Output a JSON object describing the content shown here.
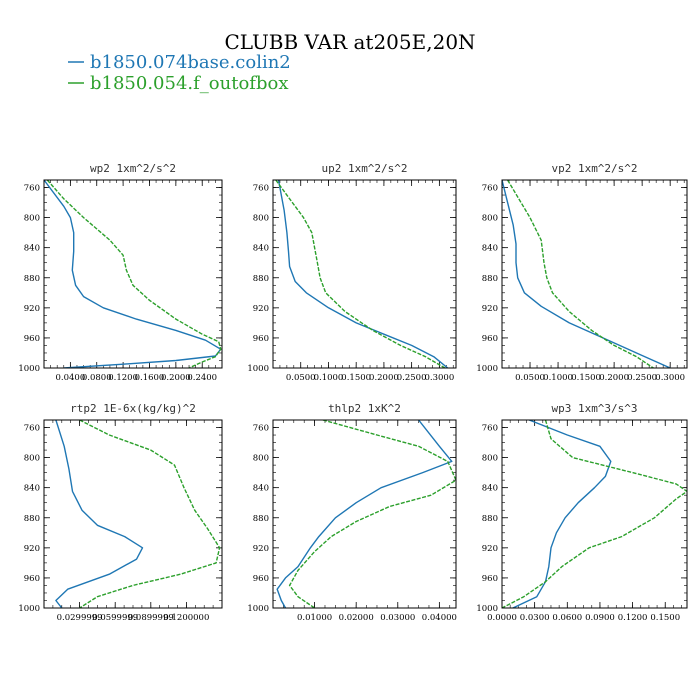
{
  "figure": {
    "title": "CLUBB VAR at205E,20N",
    "legend": [
      {
        "label": "b1850.074base.colin2",
        "color": "#1f77b4"
      },
      {
        "label": "b1850.054.f_outofbox",
        "color": "#2ca02c"
      }
    ]
  },
  "chart_data": [
    {
      "type": "line",
      "title": "wp2   1xm^2/s^2",
      "y_ticks": [
        "760",
        "800",
        "840",
        "880",
        "920",
        "960",
        "1000"
      ],
      "x_tick_labels": [
        "0.0400",
        "0.0800",
        "0.1200",
        "0.1600",
        "0.2000",
        "0.2400"
      ],
      "x_tick_values": [
        0.04,
        0.08,
        0.12,
        0.16,
        0.2,
        0.24
      ],
      "xlim": [
        0.0,
        0.27
      ],
      "ylim": [
        750,
        1000
      ],
      "series": [
        {
          "color": "#1f77b4",
          "dash": false,
          "points": [
            [
              0.0,
              750
            ],
            [
              0.03,
              785
            ],
            [
              0.04,
              800
            ],
            [
              0.045,
              820
            ],
            [
              0.045,
              845
            ],
            [
              0.043,
              870
            ],
            [
              0.048,
              890
            ],
            [
              0.06,
              905
            ],
            [
              0.09,
              920
            ],
            [
              0.14,
              935
            ],
            [
              0.2,
              950
            ],
            [
              0.245,
              963
            ],
            [
              0.268,
              975
            ],
            [
              0.26,
              984
            ],
            [
              0.2,
              990
            ],
            [
              0.12,
              995
            ],
            [
              0.03,
              1000
            ]
          ]
        },
        {
          "color": "#2ca02c",
          "dash": true,
          "points": [
            [
              0.005,
              750
            ],
            [
              0.03,
              775
            ],
            [
              0.06,
              800
            ],
            [
              0.1,
              830
            ],
            [
              0.12,
              850
            ],
            [
              0.125,
              870
            ],
            [
              0.135,
              890
            ],
            [
              0.16,
              910
            ],
            [
              0.2,
              935
            ],
            [
              0.24,
              955
            ],
            [
              0.265,
              965
            ],
            [
              0.268,
              975
            ],
            [
              0.26,
              985
            ],
            [
              0.24,
              992
            ],
            [
              0.22,
              1000
            ]
          ]
        }
      ]
    },
    {
      "type": "line",
      "title": "up2   1xm^2/s^2",
      "y_ticks": [
        "760",
        "800",
        "840",
        "880",
        "920",
        "960",
        "1000"
      ],
      "x_tick_labels": [
        "0.0500",
        "0.1000",
        "0.1500",
        "0.2000",
        "0.2500",
        "0.3000"
      ],
      "x_tick_values": [
        0.05,
        0.1,
        0.15,
        0.2,
        0.25,
        0.3
      ],
      "xlim": [
        0.0,
        0.33
      ],
      "ylim": [
        750,
        1000
      ],
      "series": [
        {
          "color": "#1f77b4",
          "dash": false,
          "points": [
            [
              0.01,
              750
            ],
            [
              0.02,
              790
            ],
            [
              0.025,
              820
            ],
            [
              0.028,
              845
            ],
            [
              0.03,
              865
            ],
            [
              0.04,
              885
            ],
            [
              0.06,
              900
            ],
            [
              0.1,
              920
            ],
            [
              0.15,
              940
            ],
            [
              0.2,
              955
            ],
            [
              0.25,
              970
            ],
            [
              0.29,
              985
            ],
            [
              0.315,
              1000
            ]
          ]
        },
        {
          "color": "#2ca02c",
          "dash": true,
          "points": [
            [
              0.005,
              750
            ],
            [
              0.03,
              775
            ],
            [
              0.055,
              800
            ],
            [
              0.07,
              820
            ],
            [
              0.075,
              840
            ],
            [
              0.08,
              860
            ],
            [
              0.085,
              880
            ],
            [
              0.095,
              900
            ],
            [
              0.13,
              925
            ],
            [
              0.18,
              950
            ],
            [
              0.23,
              970
            ],
            [
              0.275,
              985
            ],
            [
              0.31,
              1000
            ]
          ]
        }
      ]
    },
    {
      "type": "line",
      "title": "vp2   1xm^2/s^2",
      "y_ticks": [
        "760",
        "800",
        "840",
        "880",
        "920",
        "960",
        "1000"
      ],
      "x_tick_labels": [
        "0.0500",
        "0.1000",
        "0.1500",
        "0.2000",
        "0.2500",
        "0.3000"
      ],
      "x_tick_values": [
        0.05,
        0.1,
        0.15,
        0.2,
        0.25,
        0.3
      ],
      "xlim": [
        0.0,
        0.33
      ],
      "ylim": [
        750,
        1000
      ],
      "series": [
        {
          "color": "#1f77b4",
          "dash": false,
          "points": [
            [
              0.0,
              750
            ],
            [
              0.01,
              780
            ],
            [
              0.02,
              810
            ],
            [
              0.025,
              835
            ],
            [
              0.025,
              860
            ],
            [
              0.028,
              880
            ],
            [
              0.04,
              900
            ],
            [
              0.07,
              918
            ],
            [
              0.12,
              940
            ],
            [
              0.18,
              960
            ],
            [
              0.24,
              980
            ],
            [
              0.3,
              1000
            ]
          ]
        },
        {
          "color": "#2ca02c",
          "dash": true,
          "points": [
            [
              0.01,
              750
            ],
            [
              0.03,
              775
            ],
            [
              0.05,
              800
            ],
            [
              0.07,
              830
            ],
            [
              0.075,
              860
            ],
            [
              0.08,
              880
            ],
            [
              0.09,
              900
            ],
            [
              0.12,
              925
            ],
            [
              0.16,
              950
            ],
            [
              0.2,
              970
            ],
            [
              0.24,
              985
            ],
            [
              0.27,
              1000
            ]
          ]
        }
      ]
    },
    {
      "type": "line",
      "title": "rtp2   1E-6x(kg/kg)^2",
      "y_ticks": [
        "760",
        "800",
        "840",
        "880",
        "920",
        "960",
        "1000"
      ],
      "x_tick_labels": [
        "0.0299999",
        "0.0599999",
        "0.0899999",
        "0.1200000"
      ],
      "x_tick_values": [
        0.03,
        0.06,
        0.09,
        0.12
      ],
      "xlim": [
        0.0,
        0.15
      ],
      "ylim": [
        750,
        1000
      ],
      "series": [
        {
          "color": "#1f77b4",
          "dash": false,
          "points": [
            [
              0.01,
              750
            ],
            [
              0.017,
              785
            ],
            [
              0.021,
              815
            ],
            [
              0.024,
              845
            ],
            [
              0.032,
              870
            ],
            [
              0.045,
              890
            ],
            [
              0.068,
              905
            ],
            [
              0.083,
              920
            ],
            [
              0.078,
              935
            ],
            [
              0.055,
              955
            ],
            [
              0.02,
              975
            ],
            [
              0.01,
              990
            ],
            [
              0.015,
              1000
            ]
          ]
        },
        {
          "color": "#2ca02c",
          "dash": true,
          "points": [
            [
              0.03,
              750
            ],
            [
              0.055,
              770
            ],
            [
              0.09,
              790
            ],
            [
              0.11,
              810
            ],
            [
              0.118,
              840
            ],
            [
              0.127,
              870
            ],
            [
              0.138,
              895
            ],
            [
              0.148,
              920
            ],
            [
              0.145,
              940
            ],
            [
              0.115,
              955
            ],
            [
              0.075,
              970
            ],
            [
              0.045,
              985
            ],
            [
              0.03,
              1000
            ]
          ]
        }
      ]
    },
    {
      "type": "line",
      "title": "thlp2   1xK^2",
      "y_ticks": [
        "760",
        "800",
        "840",
        "880",
        "920",
        "960",
        "1000"
      ],
      "x_tick_labels": [
        "0.01000",
        "0.02000",
        "0.03000",
        "0.04000"
      ],
      "x_tick_values": [
        0.01,
        0.02,
        0.03,
        0.04
      ],
      "xlim": [
        0.0,
        0.044
      ],
      "ylim": [
        750,
        1000
      ],
      "series": [
        {
          "color": "#1f77b4",
          "dash": false,
          "points": [
            [
              0.035,
              750
            ],
            [
              0.04,
              785
            ],
            [
              0.043,
              805
            ],
            [
              0.036,
              820
            ],
            [
              0.026,
              840
            ],
            [
              0.02,
              860
            ],
            [
              0.015,
              880
            ],
            [
              0.011,
              905
            ],
            [
              0.009,
              920
            ],
            [
              0.006,
              945
            ],
            [
              0.003,
              960
            ],
            [
              0.001,
              975
            ],
            [
              0.002,
              990
            ],
            [
              0.003,
              1000
            ]
          ]
        },
        {
          "color": "#2ca02c",
          "dash": true,
          "points": [
            [
              0.012,
              750
            ],
            [
              0.025,
              770
            ],
            [
              0.035,
              785
            ],
            [
              0.042,
              805
            ],
            [
              0.044,
              830
            ],
            [
              0.038,
              850
            ],
            [
              0.028,
              865
            ],
            [
              0.02,
              885
            ],
            [
              0.014,
              905
            ],
            [
              0.01,
              925
            ],
            [
              0.006,
              950
            ],
            [
              0.004,
              970
            ],
            [
              0.006,
              985
            ],
            [
              0.01,
              1000
            ]
          ]
        }
      ]
    },
    {
      "type": "line",
      "title": "wp3   1xm^3/s^3",
      "y_ticks": [
        "760",
        "800",
        "840",
        "880",
        "920",
        "960",
        "1000"
      ],
      "x_tick_labels": [
        "0.0000",
        "0.0300",
        "0.0600",
        "0.0900",
        "0.1200",
        "0.1500"
      ],
      "x_tick_values": [
        0.0,
        0.03,
        0.06,
        0.09,
        0.12,
        0.15
      ],
      "xlim": [
        0.0,
        0.17
      ],
      "ylim": [
        750,
        1000
      ],
      "series": [
        {
          "color": "#1f77b4",
          "dash": false,
          "points": [
            [
              0.025,
              750
            ],
            [
              0.06,
              770
            ],
            [
              0.09,
              785
            ],
            [
              0.1,
              805
            ],
            [
              0.095,
              825
            ],
            [
              0.085,
              840
            ],
            [
              0.07,
              860
            ],
            [
              0.058,
              880
            ],
            [
              0.05,
              900
            ],
            [
              0.045,
              920
            ],
            [
              0.043,
              945
            ],
            [
              0.04,
              965
            ],
            [
              0.032,
              985
            ],
            [
              0.01,
              1000
            ]
          ]
        },
        {
          "color": "#2ca02c",
          "dash": true,
          "points": [
            [
              0.04,
              750
            ],
            [
              0.045,
              775
            ],
            [
              0.065,
              800
            ],
            [
              0.12,
              820
            ],
            [
              0.16,
              835
            ],
            [
              0.17,
              845
            ],
            [
              0.16,
              855
            ],
            [
              0.14,
              880
            ],
            [
              0.11,
              905
            ],
            [
              0.08,
              920
            ],
            [
              0.055,
              945
            ],
            [
              0.04,
              965
            ],
            [
              0.02,
              985
            ],
            [
              0.0,
              1000
            ]
          ]
        }
      ]
    }
  ]
}
